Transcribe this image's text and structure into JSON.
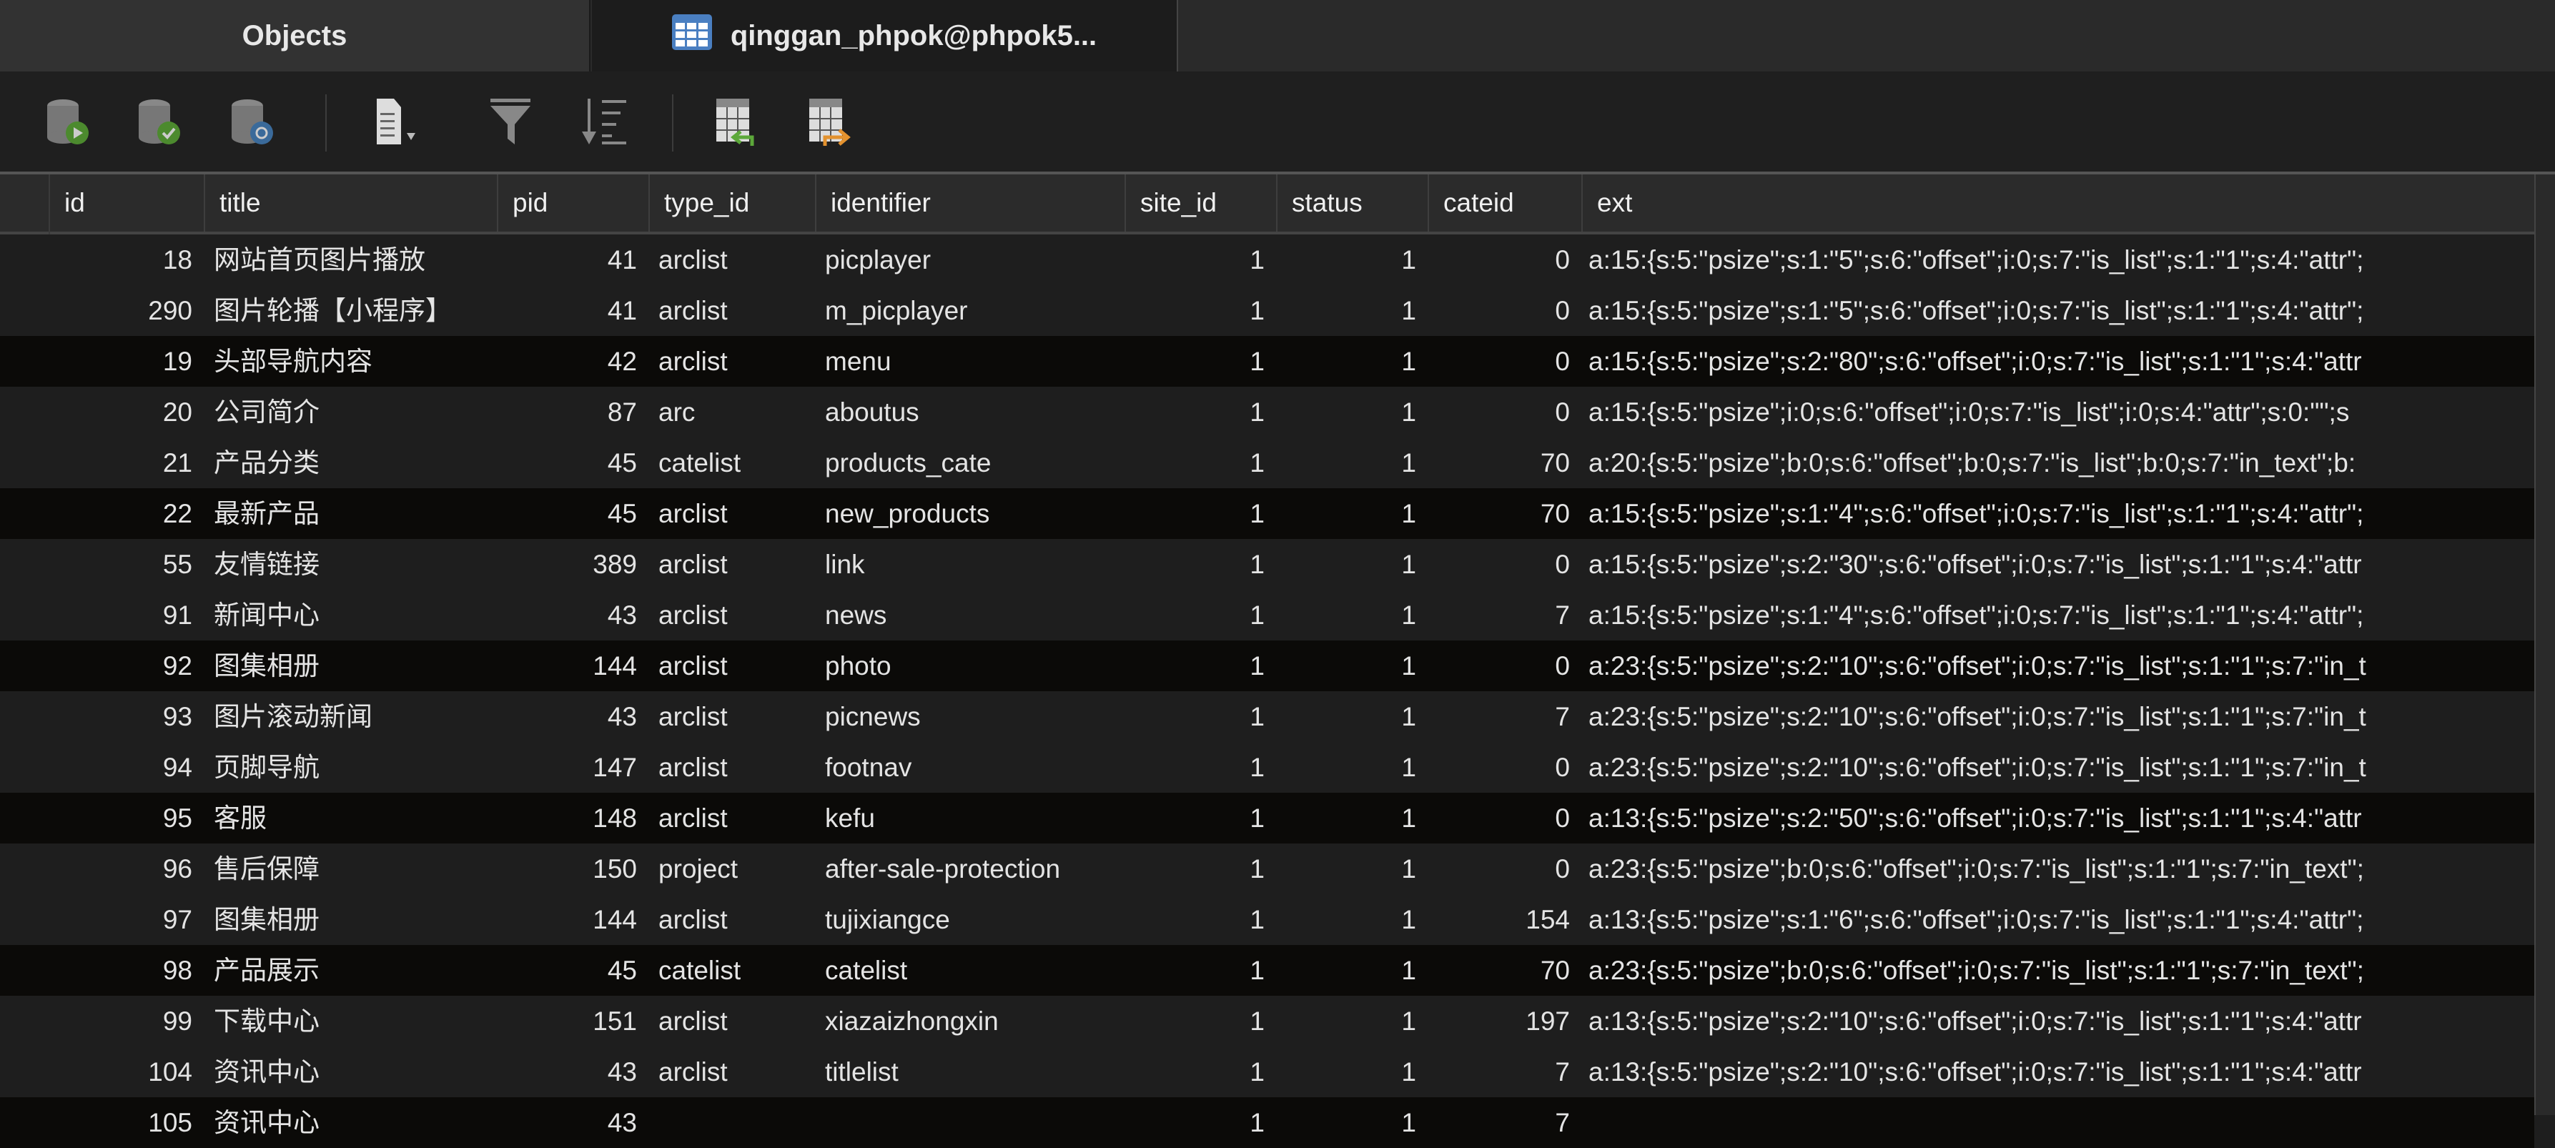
{
  "tabs": [
    {
      "label": "Objects",
      "active": false
    },
    {
      "label": "qinggan_phpok@phpok5...",
      "active": true,
      "icon": "table-icon"
    }
  ],
  "toolbar": {
    "buttons": [
      {
        "name": "begin-transaction",
        "icon": "database-play-icon"
      },
      {
        "name": "commit",
        "icon": "database-check-icon"
      },
      {
        "name": "rollback",
        "icon": "database-refresh-icon"
      },
      {
        "name": "text",
        "icon": "document-dropdown-icon"
      },
      {
        "name": "filter",
        "icon": "filter-icon"
      },
      {
        "name": "sort",
        "icon": "sort-icon"
      },
      {
        "name": "import",
        "icon": "table-import-icon"
      },
      {
        "name": "export",
        "icon": "table-export-icon"
      }
    ]
  },
  "columns": [
    "id",
    "title",
    "pid",
    "type_id",
    "identifier",
    "site_id",
    "status",
    "cateid",
    "ext"
  ],
  "rows": [
    [
      "18",
      "网站首页图片播放",
      "41",
      "arclist",
      "picplayer",
      "1",
      "1",
      "0",
      "a:15:{s:5:\"psize\";s:1:\"5\";s:6:\"offset\";i:0;s:7:\"is_list\";s:1:\"1\";s:4:\"attr\";"
    ],
    [
      "290",
      "图片轮播【小程序】",
      "41",
      "arclist",
      "m_picplayer",
      "1",
      "1",
      "0",
      "a:15:{s:5:\"psize\";s:1:\"5\";s:6:\"offset\";i:0;s:7:\"is_list\";s:1:\"1\";s:4:\"attr\";"
    ],
    [
      "19",
      "头部导航内容",
      "42",
      "arclist",
      "menu",
      "1",
      "1",
      "0",
      "a:15:{s:5:\"psize\";s:2:\"80\";s:6:\"offset\";i:0;s:7:\"is_list\";s:1:\"1\";s:4:\"attr"
    ],
    [
      "20",
      "公司简介",
      "87",
      "arc",
      "aboutus",
      "1",
      "1",
      "0",
      "a:15:{s:5:\"psize\";i:0;s:6:\"offset\";i:0;s:7:\"is_list\";i:0;s:4:\"attr\";s:0:\"\";s"
    ],
    [
      "21",
      "产品分类",
      "45",
      "catelist",
      "products_cate",
      "1",
      "1",
      "70",
      "a:20:{s:5:\"psize\";b:0;s:6:\"offset\";b:0;s:7:\"is_list\";b:0;s:7:\"in_text\";b:"
    ],
    [
      "22",
      "最新产品",
      "45",
      "arclist",
      "new_products",
      "1",
      "1",
      "70",
      "a:15:{s:5:\"psize\";s:1:\"4\";s:6:\"offset\";i:0;s:7:\"is_list\";s:1:\"1\";s:4:\"attr\";"
    ],
    [
      "55",
      "友情链接",
      "389",
      "arclist",
      "link",
      "1",
      "1",
      "0",
      "a:15:{s:5:\"psize\";s:2:\"30\";s:6:\"offset\";i:0;s:7:\"is_list\";s:1:\"1\";s:4:\"attr"
    ],
    [
      "91",
      "新闻中心",
      "43",
      "arclist",
      "news",
      "1",
      "1",
      "7",
      "a:15:{s:5:\"psize\";s:1:\"4\";s:6:\"offset\";i:0;s:7:\"is_list\";s:1:\"1\";s:4:\"attr\";"
    ],
    [
      "92",
      "图集相册",
      "144",
      "arclist",
      "photo",
      "1",
      "1",
      "0",
      "a:23:{s:5:\"psize\";s:2:\"10\";s:6:\"offset\";i:0;s:7:\"is_list\";s:1:\"1\";s:7:\"in_t"
    ],
    [
      "93",
      "图片滚动新闻",
      "43",
      "arclist",
      "picnews",
      "1",
      "1",
      "7",
      "a:23:{s:5:\"psize\";s:2:\"10\";s:6:\"offset\";i:0;s:7:\"is_list\";s:1:\"1\";s:7:\"in_t"
    ],
    [
      "94",
      "页脚导航",
      "147",
      "arclist",
      "footnav",
      "1",
      "1",
      "0",
      "a:23:{s:5:\"psize\";s:2:\"10\";s:6:\"offset\";i:0;s:7:\"is_list\";s:1:\"1\";s:7:\"in_t"
    ],
    [
      "95",
      "客服",
      "148",
      "arclist",
      "kefu",
      "1",
      "1",
      "0",
      "a:13:{s:5:\"psize\";s:2:\"50\";s:6:\"offset\";i:0;s:7:\"is_list\";s:1:\"1\";s:4:\"attr"
    ],
    [
      "96",
      "售后保障",
      "150",
      "project",
      "after-sale-protection",
      "1",
      "1",
      "0",
      "a:23:{s:5:\"psize\";b:0;s:6:\"offset\";i:0;s:7:\"is_list\";s:1:\"1\";s:7:\"in_text\";"
    ],
    [
      "97",
      "图集相册",
      "144",
      "arclist",
      "tujixiangce",
      "1",
      "1",
      "154",
      "a:13:{s:5:\"psize\";s:1:\"6\";s:6:\"offset\";i:0;s:7:\"is_list\";s:1:\"1\";s:4:\"attr\";"
    ],
    [
      "98",
      "产品展示",
      "45",
      "catelist",
      "catelist",
      "1",
      "1",
      "70",
      "a:23:{s:5:\"psize\";b:0;s:6:\"offset\";i:0;s:7:\"is_list\";s:1:\"1\";s:7:\"in_text\";"
    ],
    [
      "99",
      "下载中心",
      "151",
      "arclist",
      "xiazaizhongxin",
      "1",
      "1",
      "197",
      "a:13:{s:5:\"psize\";s:2:\"10\";s:6:\"offset\";i:0;s:7:\"is_list\";s:1:\"1\";s:4:\"attr"
    ],
    [
      "104",
      "资讯中心",
      "43",
      "arclist",
      "titlelist",
      "1",
      "1",
      "7",
      "a:13:{s:5:\"psize\";s:2:\"10\";s:6:\"offset\";i:0;s:7:\"is_list\";s:1:\"1\";s:4:\"attr"
    ],
    [
      "105",
      "资讯中心",
      "43",
      "",
      "",
      "1",
      "1",
      "7",
      ""
    ]
  ],
  "colors": {
    "row": "#1e1e1e",
    "row_alt": "#0b0a08",
    "header": "#2b2b2b",
    "tab_icon": "#4a7fc1"
  }
}
